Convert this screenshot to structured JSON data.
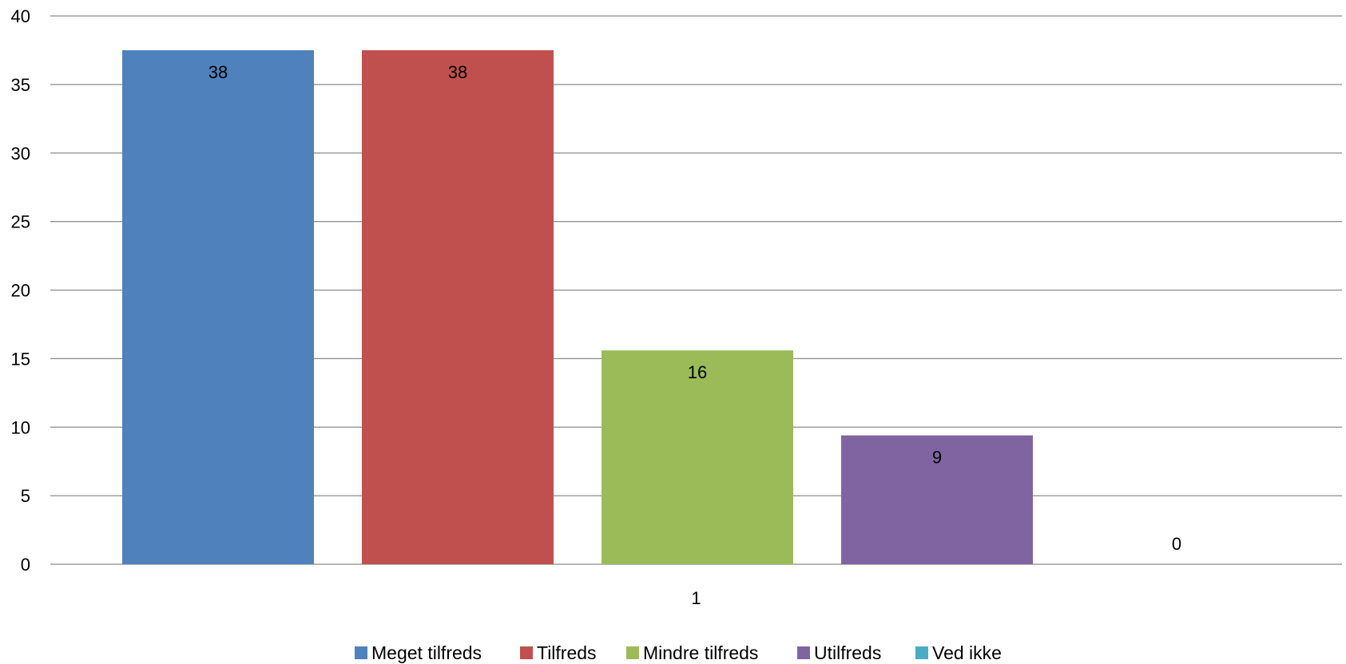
{
  "chart_data": {
    "type": "bar",
    "categories": [
      "1"
    ],
    "series": [
      {
        "name": "Meget tilfreds",
        "values": [
          37.5
        ],
        "label": "38",
        "color": "#4F81BD"
      },
      {
        "name": "Tilfreds",
        "values": [
          37.5
        ],
        "label": "38",
        "color": "#C0504D"
      },
      {
        "name": "Mindre tilfreds",
        "values": [
          15.6
        ],
        "label": "16",
        "color": "#9BBB59"
      },
      {
        "name": "Utilfreds",
        "values": [
          9.4
        ],
        "label": "9",
        "color": "#8064A2"
      },
      {
        "name": "Ved ikke",
        "values": [
          0
        ],
        "label": "0",
        "color": "#4BACC6"
      }
    ],
    "ylim": [
      0,
      40
    ],
    "yticks": [
      "0",
      "5",
      "10",
      "15",
      "20",
      "25",
      "30",
      "35",
      "40"
    ],
    "grid": true,
    "legend_position": "bottom",
    "title": "",
    "xlabel": "",
    "ylabel": ""
  }
}
